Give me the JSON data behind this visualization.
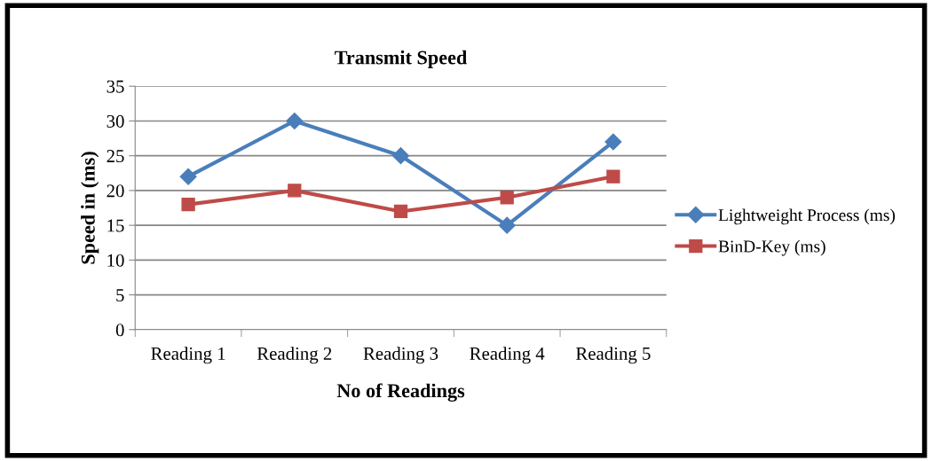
{
  "chart_data": {
    "type": "line",
    "title": "Transmit Speed",
    "xlabel": "No of Readings",
    "ylabel": "Speed in (ms)",
    "categories": [
      "Reading 1",
      "Reading 2",
      "Reading 3",
      "Reading 4",
      "Reading 5"
    ],
    "series": [
      {
        "name": "Lightweight Process (ms)",
        "color": "#4a7ebb",
        "values": [
          22,
          30,
          25,
          15,
          27
        ],
        "marker": "diamond"
      },
      {
        "name": "BinD-Key (ms)",
        "color": "#be4b48",
        "values": [
          18,
          20,
          17,
          19,
          22
        ],
        "marker": "square"
      }
    ],
    "ylim": [
      0,
      35
    ],
    "yticks": [
      0,
      5,
      10,
      15,
      20,
      25,
      30,
      35
    ],
    "grid": "y",
    "legend": "right",
    "line_style": "solid"
  }
}
